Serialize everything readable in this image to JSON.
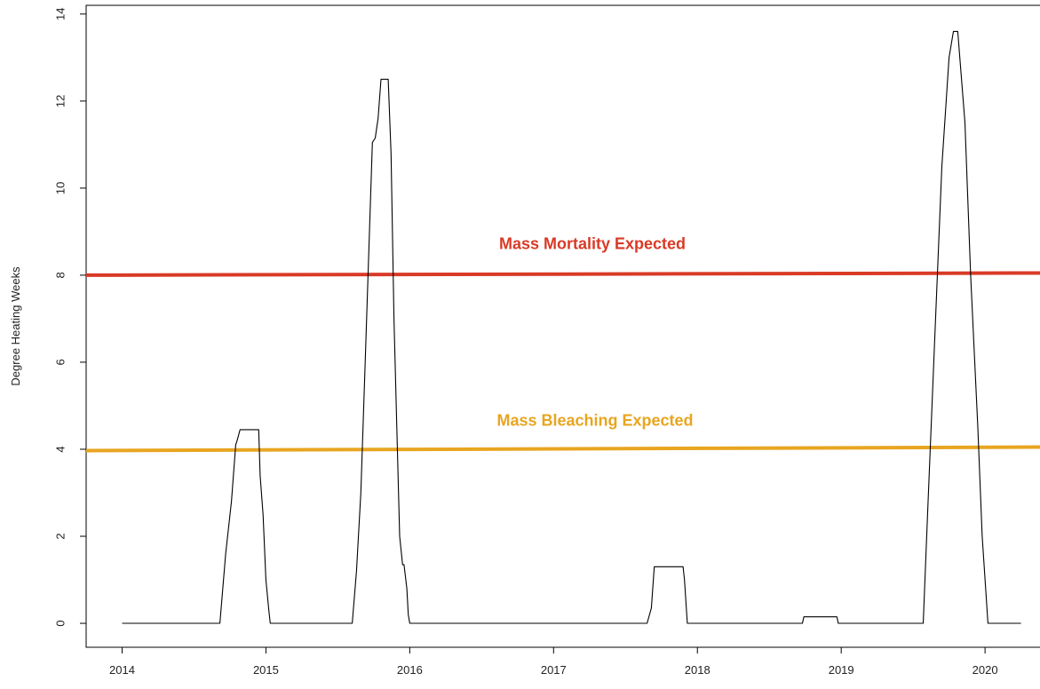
{
  "chart_data": {
    "type": "line",
    "ylabel": "Degree Heating Weeks",
    "xlim": [
      2013.75,
      2020.45
    ],
    "ylim": [
      -0.55,
      14.2
    ],
    "x_ticks": [
      2014,
      2015,
      2016,
      2017,
      2018,
      2019,
      2020
    ],
    "y_ticks": [
      0,
      2,
      4,
      6,
      8,
      10,
      12,
      14
    ],
    "grid": false,
    "series": [
      {
        "color": "#000000",
        "points": [
          [
            2014.0,
            0
          ],
          [
            2014.68,
            0
          ],
          [
            2014.72,
            1.6
          ],
          [
            2014.76,
            2.8
          ],
          [
            2014.79,
            4.1
          ],
          [
            2014.8,
            4.2
          ],
          [
            2014.82,
            4.45
          ],
          [
            2014.95,
            4.45
          ],
          [
            2014.96,
            3.4
          ],
          [
            2014.98,
            2.5
          ],
          [
            2015.0,
            1.0
          ],
          [
            2015.02,
            0.3
          ],
          [
            2015.03,
            0
          ],
          [
            2015.6,
            0
          ],
          [
            2015.63,
            1.2
          ],
          [
            2015.66,
            3.0
          ],
          [
            2015.69,
            6.0
          ],
          [
            2015.72,
            9.0
          ],
          [
            2015.74,
            11.05
          ],
          [
            2015.76,
            11.15
          ],
          [
            2015.78,
            11.6
          ],
          [
            2015.8,
            12.5
          ],
          [
            2015.85,
            12.5
          ],
          [
            2015.87,
            10.8
          ],
          [
            2015.89,
            7.0
          ],
          [
            2015.91,
            4.5
          ],
          [
            2015.93,
            2.0
          ],
          [
            2015.95,
            1.35
          ],
          [
            2015.96,
            1.35
          ],
          [
            2015.98,
            0.8
          ],
          [
            2015.99,
            0.2
          ],
          [
            2016.0,
            0
          ],
          [
            2017.65,
            0
          ],
          [
            2017.68,
            0.35
          ],
          [
            2017.7,
            1.3
          ],
          [
            2017.9,
            1.3
          ],
          [
            2017.91,
            1.0
          ],
          [
            2017.93,
            0
          ],
          [
            2018.73,
            0
          ],
          [
            2018.74,
            0.15
          ],
          [
            2018.97,
            0.15
          ],
          [
            2018.98,
            0
          ],
          [
            2019.57,
            0
          ],
          [
            2019.6,
            2.5
          ],
          [
            2019.65,
            6.5
          ],
          [
            2019.7,
            10.5
          ],
          [
            2019.75,
            13.0
          ],
          [
            2019.78,
            13.6
          ],
          [
            2019.81,
            13.6
          ],
          [
            2019.86,
            11.5
          ],
          [
            2019.9,
            8.0
          ],
          [
            2019.95,
            4.5
          ],
          [
            2019.98,
            2.0
          ],
          [
            2020.02,
            0
          ],
          [
            2020.25,
            0
          ]
        ]
      }
    ],
    "thresholds": [
      {
        "label": "Mass Mortality Expected",
        "value": 8,
        "value_end": 8.05,
        "color": "#d93a26"
      },
      {
        "label": "Mass Bleaching Expected",
        "value": 3.97,
        "value_end": 4.05,
        "color": "#e8a520"
      }
    ]
  }
}
